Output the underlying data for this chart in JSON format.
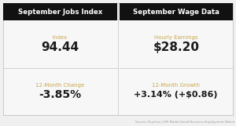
{
  "left_title": "September Jobs Index",
  "right_title": "September Wage Data",
  "left_label1": "Index",
  "left_value1": "94.44",
  "left_label2": "12-Month Change",
  "left_value2": "-3.85%",
  "right_label1": "Hourly Earnings",
  "right_value1": "$28.20",
  "right_label2": "12-Month Growth",
  "right_value2": "+3.14% (+$0.86)",
  "source_text": "Source: Paychex | IHS Markit Small Business Employment Watch",
  "header_bg": "#111111",
  "header_text_color": "#ffffff",
  "body_bg": "#f0f0f0",
  "panel_bg": "#f7f7f7",
  "label_color": "#c8a84b",
  "value_color": "#1a1a1a",
  "source_color": "#999999",
  "divider_color": "#cccccc",
  "border_color": "#cccccc"
}
